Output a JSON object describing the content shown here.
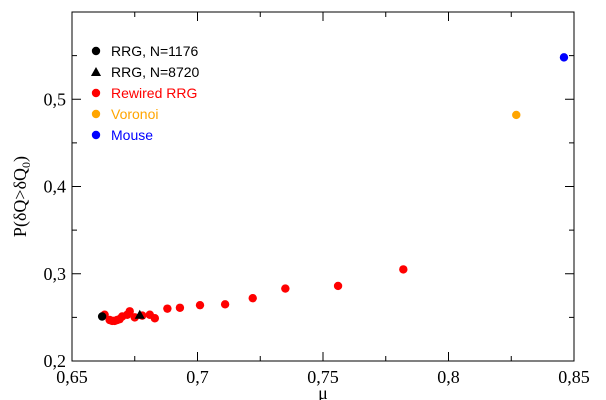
{
  "chart_data": {
    "type": "scatter",
    "title": "",
    "xlabel": "μ",
    "ylabel_main": "P(δQ>δQ",
    "ylabel_sub": "0",
    "ylabel_close": ")",
    "xlim": [
      0.65,
      0.85
    ],
    "ylim": [
      0.2,
      0.6
    ],
    "xticks": [
      0.65,
      0.7,
      0.75,
      0.8,
      0.85
    ],
    "xtick_labels": [
      "0,65",
      "0,7",
      "0,75",
      "0,8",
      "0,85"
    ],
    "yticks": [
      0.2,
      0.3,
      0.4,
      0.5
    ],
    "ytick_labels": [
      "0,2",
      "0,3",
      "0,4",
      "0,5"
    ],
    "legend_position": "top-left",
    "grid": false,
    "series": [
      {
        "name": "RRG, N=1176",
        "marker": "circle",
        "color": "#000000",
        "points": [
          [
            0.662,
            0.251
          ]
        ]
      },
      {
        "name": "RRG, N=8720",
        "marker": "triangle",
        "color": "#000000",
        "points": [
          [
            0.677,
            0.253
          ]
        ]
      },
      {
        "name": "Rewired RRG",
        "marker": "circle",
        "color": "#ff0000",
        "points": [
          [
            0.663,
            0.253
          ],
          [
            0.665,
            0.247
          ],
          [
            0.666,
            0.246
          ],
          [
            0.667,
            0.246
          ],
          [
            0.668,
            0.247
          ],
          [
            0.669,
            0.248
          ],
          [
            0.67,
            0.251
          ],
          [
            0.672,
            0.253
          ],
          [
            0.673,
            0.257
          ],
          [
            0.675,
            0.25
          ],
          [
            0.678,
            0.252
          ],
          [
            0.681,
            0.253
          ],
          [
            0.683,
            0.249
          ],
          [
            0.688,
            0.26
          ],
          [
            0.693,
            0.261
          ],
          [
            0.701,
            0.264
          ],
          [
            0.711,
            0.265
          ],
          [
            0.722,
            0.272
          ],
          [
            0.735,
            0.283
          ],
          [
            0.756,
            0.286
          ],
          [
            0.782,
            0.305
          ]
        ]
      },
      {
        "name": "Voronoi",
        "marker": "circle",
        "color": "#ffa500",
        "points": [
          [
            0.827,
            0.482
          ]
        ]
      },
      {
        "name": "Mouse",
        "marker": "circle",
        "color": "#0000ff",
        "points": [
          [
            0.846,
            0.548
          ]
        ]
      }
    ]
  }
}
